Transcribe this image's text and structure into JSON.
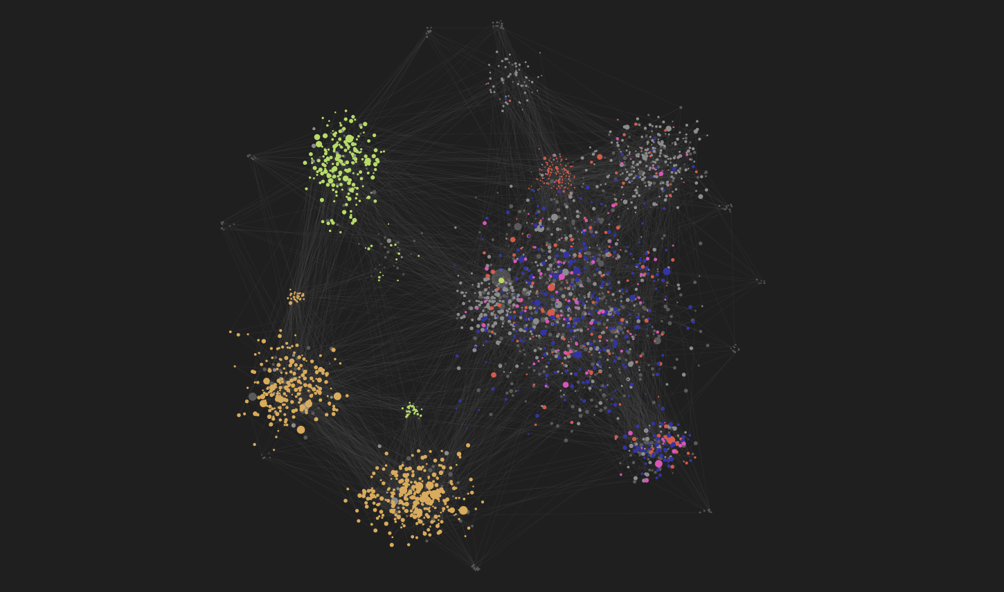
{
  "graph": {
    "view": "graph-view",
    "background_color": "#1f1f1f",
    "link_color": "#4a4a4a",
    "groups": [
      {
        "id": "green",
        "color": "#b7dc68"
      },
      {
        "id": "orange",
        "color": "#d9ab5c"
      },
      {
        "id": "blue",
        "color": "#3434a6"
      },
      {
        "id": "pink",
        "color": "#d956b8"
      },
      {
        "id": "red",
        "color": "#d55b4b"
      },
      {
        "id": "gray",
        "color": "#8c8c8c"
      },
      {
        "id": "dim",
        "color": "#5a5a5a"
      }
    ]
  }
}
